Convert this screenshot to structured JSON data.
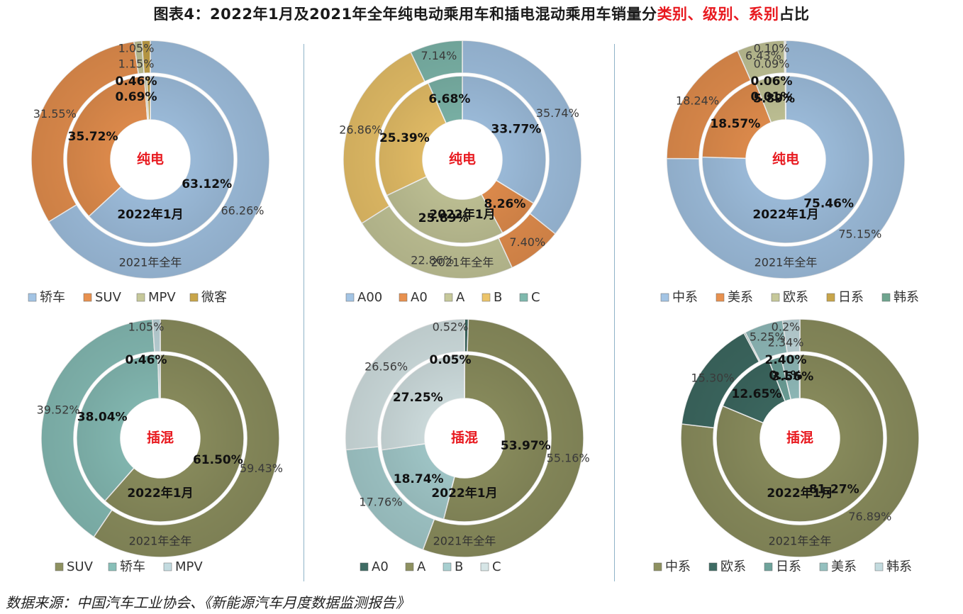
{
  "title_parts": {
    "before": "图表4：2022年1月及2021年全年纯电动乘用车和插电混动乘用车销量分",
    "highlight": "类别、级别、系别",
    "after": "占比"
  },
  "source": "数据来源：中国汽车工业协会、《新能源汽车月度数据监测报告》",
  "colors": {
    "sedan": "#a3c4e4",
    "suv": "#e8914f",
    "mpv": "#c6c89a",
    "micro": "#c8a54a",
    "a00": "#a3c4e4",
    "a0": "#e8914f",
    "a": "#c6c89a",
    "b": "#ecc46a",
    "c": "#7fb9ad",
    "china": "#a3c4e4",
    "us": "#e8914f",
    "eu": "#c6c89a",
    "jp": "#c8a54a",
    "kr": "#6fa58f",
    "phev_suv": "#8e9160",
    "phev_sedan": "#88bfb8",
    "phev_mpv": "#c3dbe0",
    "phev_a0": "#3e6b63",
    "phev_a": "#8e9160",
    "phev_b": "#a7cfd0",
    "phev_c": "#d6e5e6",
    "phev_china": "#8e9160",
    "phev_eu": "#3e6b63",
    "phev_jp": "#6ea39b",
    "phev_us": "#94c0bf",
    "phev_kr": "#c3dbdf"
  },
  "chart_data": [
    {
      "type": "pie",
      "id": "bev_category",
      "center_label": "纯电",
      "inner_ring_label": "2022年1月",
      "outer_ring_label": "2021年全年",
      "categories": [
        "轿车",
        "SUV",
        "MPV",
        "微客"
      ],
      "series": [
        {
          "name": "2022年1月",
          "values": [
            63.12,
            35.72,
            0.46,
            0.69
          ],
          "labels": [
            "63.12%",
            "35.72%",
            "0.46%",
            "0.69%"
          ]
        },
        {
          "name": "2021年全年",
          "values": [
            66.26,
            31.55,
            1.05,
            1.15
          ],
          "labels": [
            "66.26%",
            "31.55%",
            "1.05%",
            "1.15%"
          ]
        }
      ],
      "color_keys": [
        "sedan",
        "suv",
        "mpv",
        "micro"
      ],
      "legend_position": "bottom"
    },
    {
      "type": "pie",
      "id": "bev_class",
      "center_label": "纯电",
      "inner_ring_label": "2022年1月",
      "outer_ring_label": "2021年全年",
      "categories": [
        "A00",
        "A0",
        "A",
        "B",
        "C"
      ],
      "series": [
        {
          "name": "2022年1月",
          "values": [
            33.77,
            8.26,
            25.89,
            25.39,
            6.68
          ],
          "labels": [
            "33.77%",
            "8.26%",
            "25.89%",
            "25.39%",
            "6.68%"
          ]
        },
        {
          "name": "2021年全年",
          "values": [
            35.74,
            7.4,
            22.86,
            26.86,
            7.14
          ],
          "labels": [
            "35.74%",
            "7.40%",
            "22.86%",
            "26.86%",
            "7.14%"
          ]
        }
      ],
      "color_keys": [
        "a00",
        "a0",
        "a",
        "b",
        "c"
      ],
      "legend_position": "bottom"
    },
    {
      "type": "pie",
      "id": "bev_origin",
      "center_label": "纯电",
      "inner_ring_label": "2022年1月",
      "outer_ring_label": "2021年全年",
      "categories": [
        "中系",
        "美系",
        "欧系",
        "日系",
        "韩系"
      ],
      "series": [
        {
          "name": "2022年1月",
          "values": [
            75.46,
            18.57,
            5.89,
            0.06,
            0.01
          ],
          "labels": [
            "75.46%",
            "18.57%",
            "5.89%",
            "0.06%",
            "0.01%"
          ]
        },
        {
          "name": "2021年全年",
          "values": [
            75.15,
            18.24,
            6.43,
            0.1,
            0.09
          ],
          "labels": [
            "75.15%",
            "18.24%",
            "6.43%",
            "0.10%",
            "0.09%"
          ]
        }
      ],
      "color_keys": [
        "china",
        "us",
        "eu",
        "jp",
        "kr"
      ],
      "legend_position": "bottom"
    },
    {
      "type": "pie",
      "id": "phev_category",
      "center_label": "插混",
      "inner_ring_label": "2022年1月",
      "outer_ring_label": "2021年全年",
      "categories": [
        "SUV",
        "轿车",
        "MPV"
      ],
      "series": [
        {
          "name": "2022年1月",
          "values": [
            61.5,
            38.04,
            0.46
          ],
          "labels": [
            "61.50%",
            "38.04%",
            "0.46%"
          ]
        },
        {
          "name": "2021年全年",
          "values": [
            59.43,
            39.52,
            1.05
          ],
          "labels": [
            "59.43%",
            "39.52%",
            "1.05%"
          ]
        }
      ],
      "color_keys": [
        "phev_suv",
        "phev_sedan",
        "phev_mpv"
      ],
      "legend_position": "bottom"
    },
    {
      "type": "pie",
      "id": "phev_class",
      "center_label": "插混",
      "inner_ring_label": "2022年1月",
      "outer_ring_label": "2021年全年",
      "categories": [
        "A0",
        "A",
        "B",
        "C"
      ],
      "series": [
        {
          "name": "2022年1月",
          "values": [
            0.05,
            53.97,
            18.74,
            27.25
          ],
          "labels": [
            "0.05%",
            "53.97%",
            "18.74%",
            "27.25%"
          ]
        },
        {
          "name": "2021年全年",
          "values": [
            0.52,
            55.16,
            17.76,
            26.56
          ],
          "labels": [
            "0.52%",
            "55.16%",
            "17.76%",
            "26.56%"
          ]
        }
      ],
      "color_keys": [
        "phev_a0",
        "phev_a",
        "phev_b",
        "phev_c"
      ],
      "legend_position": "bottom"
    },
    {
      "type": "pie",
      "id": "phev_origin",
      "center_label": "插混",
      "inner_ring_label": "2022年1月",
      "outer_ring_label": "2021年全年",
      "categories": [
        "中系",
        "欧系",
        "日系",
        "美系",
        "韩系"
      ],
      "series": [
        {
          "name": "2022年1月",
          "values": [
            81.27,
            12.65,
            2.4,
            3.56,
            0.1
          ],
          "labels": [
            "81.27%",
            "12.65%",
            "2.40%",
            "3.56%",
            "0.1%"
          ]
        },
        {
          "name": "2021年全年",
          "values": [
            76.89,
            15.3,
            0.2,
            5.25,
            2.34
          ],
          "labels": [
            "76.89%",
            "15.30%",
            "0.2%",
            "5.25%",
            "2.34%"
          ]
        }
      ],
      "color_keys": [
        "phev_china",
        "phev_eu",
        "phev_jp",
        "phev_us",
        "phev_kr"
      ],
      "legend_position": "bottom"
    }
  ]
}
